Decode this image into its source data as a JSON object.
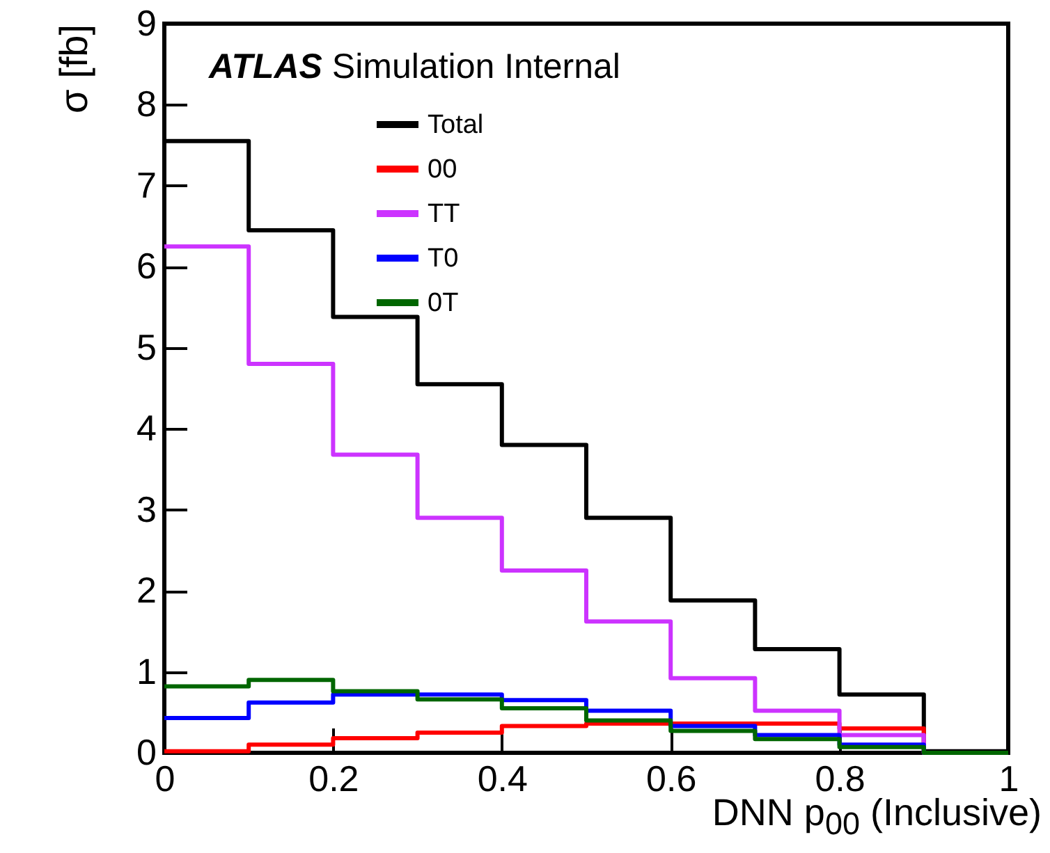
{
  "chart_data": {
    "type": "histogram",
    "xlabel": "DNN p$_{00}$ (Inclusive)",
    "ylabel": "σ [fb]",
    "annotations": [
      "ATLAS Simulation Internal"
    ],
    "bins": [
      0,
      0.1,
      0.2,
      0.3,
      0.4,
      0.5,
      0.6,
      0.7,
      0.8,
      0.9,
      1
    ],
    "series": [
      {
        "name": "Total",
        "color": "#000000",
        "values": [
          7.55,
          6.45,
          5.38,
          4.55,
          3.8,
          2.9,
          1.88,
          1.28,
          0.72,
          0.02
        ]
      },
      {
        "name": "00",
        "color": "#ff0000",
        "values": [
          0.02,
          0.1,
          0.18,
          0.25,
          0.33,
          0.36,
          0.36,
          0.36,
          0.3,
          0
        ]
      },
      {
        "name": "TT",
        "color": "#cc33ff",
        "values": [
          6.25,
          4.8,
          3.68,
          2.9,
          2.25,
          1.62,
          0.92,
          0.52,
          0.22,
          0
        ]
      },
      {
        "name": "T0",
        "color": "#0000ff",
        "values": [
          0.43,
          0.62,
          0.72,
          0.72,
          0.65,
          0.52,
          0.33,
          0.22,
          0.1,
          0
        ]
      },
      {
        "name": "0T",
        "color": "#006600",
        "values": [
          0.82,
          0.9,
          0.76,
          0.66,
          0.55,
          0.4,
          0.27,
          0.17,
          0.07,
          0
        ]
      }
    ],
    "xlim": [
      0,
      1
    ],
    "xticks": [
      0,
      0.2,
      0.4,
      0.6,
      0.8,
      1
    ],
    "ylim": [
      0,
      9
    ],
    "yticks": [
      0,
      1,
      2,
      3,
      4,
      5,
      6,
      7,
      8,
      9
    ],
    "legend": "top left",
    "grid": false
  }
}
